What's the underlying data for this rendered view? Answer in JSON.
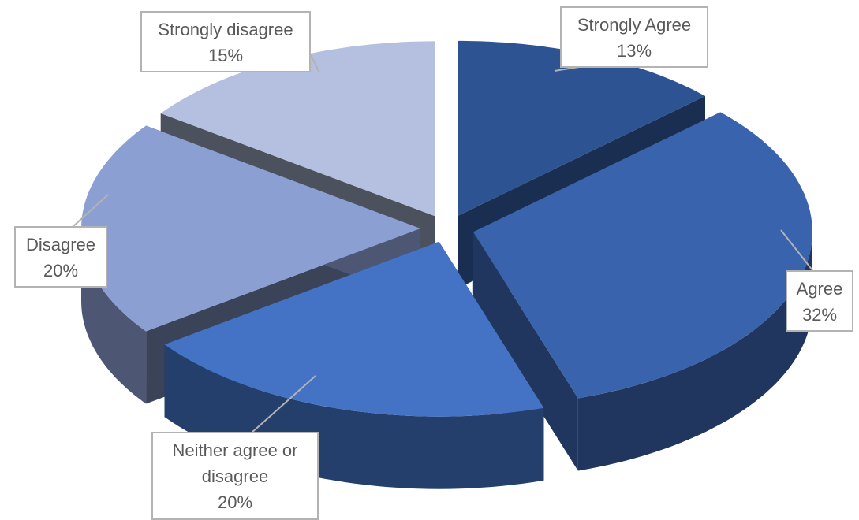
{
  "chart_data": {
    "type": "pie",
    "style": "3d-exploded",
    "categories": [
      "Strongly Agree",
      "Agree",
      "Neither agree or disagree",
      "Disagree",
      "Strongly disagree"
    ],
    "values": [
      13,
      32,
      20,
      20,
      15
    ],
    "value_labels": [
      "13%",
      "32%",
      "20%",
      "20%",
      "15%"
    ],
    "label_lines": [
      [
        "Strongly Agree"
      ],
      [
        "Agree"
      ],
      [
        "Neither agree or",
        "disagree"
      ],
      [
        "Disagree"
      ],
      [
        "Strongly disagree"
      ]
    ],
    "colors": {
      "Strongly Agree": "#2e5393",
      "Agree": "#3a63ad",
      "Neither agree or disagree": "#4472c4",
      "Disagree": "#8c9fd3",
      "Strongly disagree": "#b5c0e0"
    },
    "legend": "none",
    "data_labels": "callouts"
  }
}
